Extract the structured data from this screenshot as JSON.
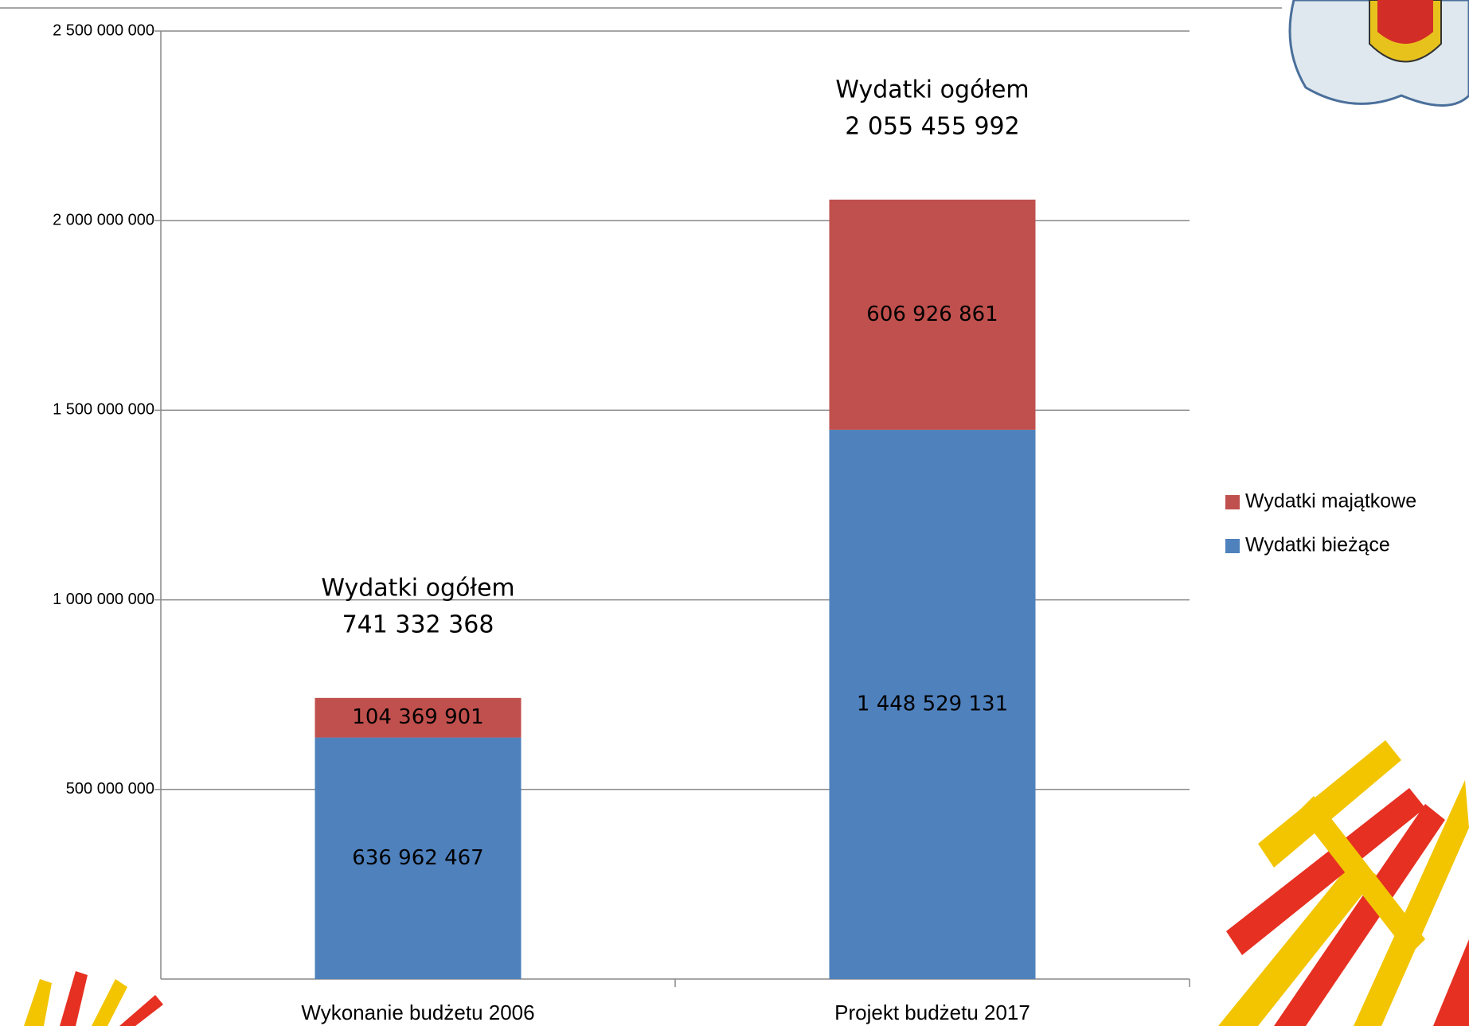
{
  "chart_data": {
    "type": "stacked_bar",
    "categories": [
      "Wykonanie budżetu 2006",
      "Projekt budżetu 2017"
    ],
    "series": [
      {
        "name": "Wydatki bieżące",
        "color": "#4f81bd",
        "values": [
          636962467,
          1448529131
        ],
        "value_labels": [
          "636 962 467",
          "1 448 529 131"
        ]
      },
      {
        "name": "Wydatki majątkowe",
        "color": "#c0504d",
        "values": [
          104369901,
          606926861
        ],
        "value_labels": [
          "104 369 901",
          "606 926 861"
        ]
      }
    ],
    "annotations": [
      {
        "title": "Wydatki ogółem",
        "value": 741332368,
        "label": "741 332 368"
      },
      {
        "title": "Wydatki ogółem",
        "value": 2055455992,
        "label": "2 055 455 992"
      }
    ],
    "ylim": [
      0,
      2500000000
    ],
    "yticks": [
      {
        "value": 500000000,
        "label": "500 000 000"
      },
      {
        "value": 1000000000,
        "label": "1 000 000 000"
      },
      {
        "value": 1500000000,
        "label": "1 500 000 000"
      },
      {
        "value": 2000000000,
        "label": "2 000 000 000"
      },
      {
        "value": 2500000000,
        "label": "2 500 000 000"
      }
    ],
    "grid": true,
    "legend": "right"
  }
}
